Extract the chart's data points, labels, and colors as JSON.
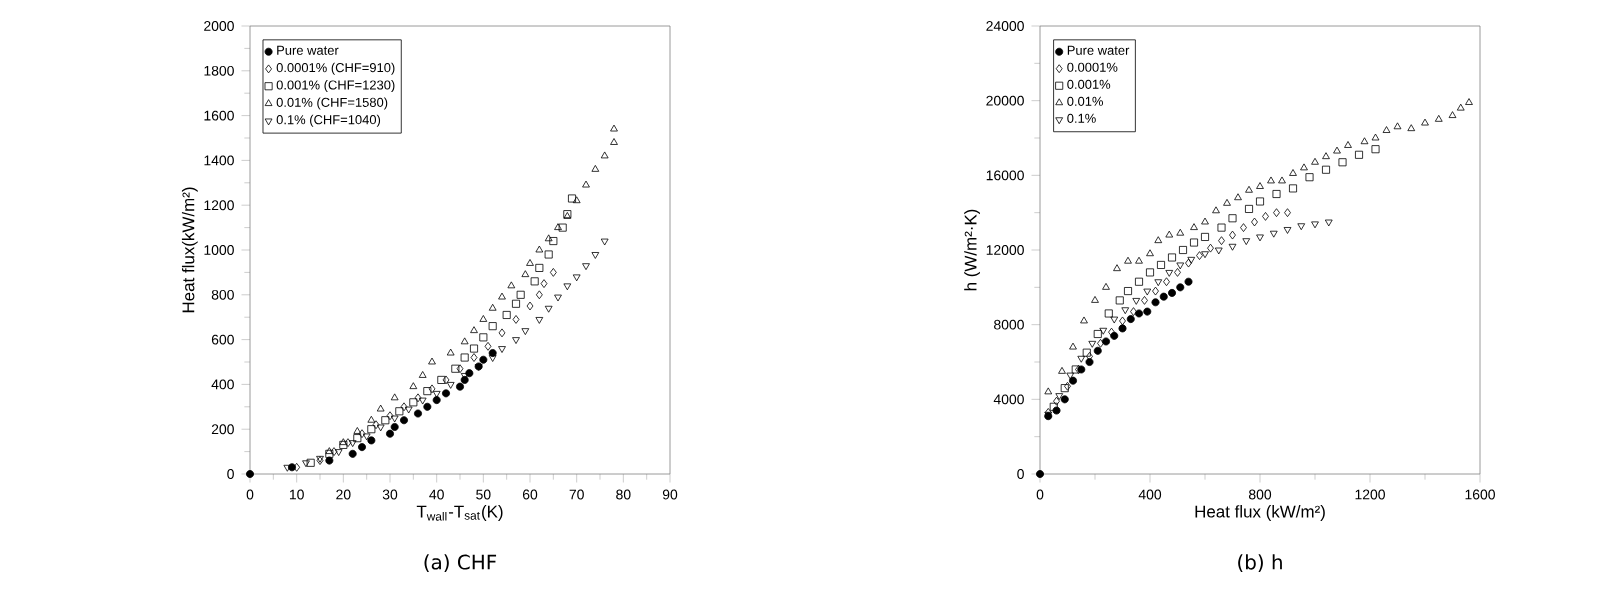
{
  "chart_data": [
    {
      "type": "scatter",
      "title": "(a) CHF",
      "xlabel": "T$_{wall}$-T$_{sat}$(K)",
      "ylabel": "Heat flux(kW/m²)",
      "xlim": [
        0,
        90
      ],
      "xticks": [
        0,
        10,
        20,
        30,
        40,
        50,
        60,
        70,
        80,
        90
      ],
      "ylim": [
        0,
        2000
      ],
      "yticks": [
        0,
        200,
        400,
        600,
        800,
        1000,
        1200,
        1400,
        1600,
        1800,
        2000
      ],
      "legend": "top left",
      "grid": false,
      "series": [
        {
          "name": "Pure water",
          "color": "#000000",
          "marker": "circle",
          "x": [
            0,
            9,
            17,
            22,
            24,
            26,
            30,
            31,
            33,
            36,
            38,
            40,
            42,
            45,
            46,
            47,
            49,
            50,
            52
          ],
          "values": [
            0,
            30,
            60,
            90,
            120,
            150,
            180,
            210,
            240,
            270,
            300,
            330,
            360,
            390,
            420,
            450,
            480,
            510,
            540
          ]
        },
        {
          "name": "0.0001% (CHF=910)",
          "color": "#000000",
          "marker": "diamond",
          "x": [
            10,
            15,
            18,
            21,
            24,
            27,
            30,
            33,
            36,
            39,
            42,
            45,
            48,
            51,
            54,
            57,
            60,
            62,
            63,
            65
          ],
          "values": [
            30,
            60,
            100,
            140,
            180,
            220,
            260,
            300,
            340,
            380,
            420,
            470,
            520,
            570,
            630,
            690,
            750,
            800,
            850,
            900
          ]
        },
        {
          "name": "0.001% (CHF=1230)",
          "color": "#000000",
          "marker": "square",
          "x": [
            13,
            17,
            20,
            23,
            26,
            29,
            32,
            35,
            38,
            41,
            44,
            46,
            48,
            50,
            52,
            55,
            57,
            58,
            61,
            62,
            64,
            65,
            67,
            68,
            69
          ],
          "values": [
            50,
            90,
            130,
            160,
            200,
            240,
            280,
            320,
            370,
            420,
            470,
            520,
            560,
            610,
            660,
            710,
            760,
            800,
            860,
            920,
            980,
            1040,
            1100,
            1160,
            1230
          ]
        },
        {
          "name": "0.01% (CHF=1580)",
          "color": "#000000",
          "marker": "triangle",
          "x": [
            17,
            20,
            23,
            26,
            28,
            31,
            35,
            37,
            39,
            43,
            46,
            48,
            50,
            52,
            54,
            56,
            59,
            60,
            62,
            64,
            66,
            68,
            70,
            72,
            74,
            76,
            78,
            78
          ],
          "values": [
            100,
            140,
            190,
            240,
            290,
            340,
            390,
            440,
            500,
            540,
            590,
            640,
            690,
            740,
            790,
            840,
            890,
            940,
            1000,
            1050,
            1100,
            1150,
            1220,
            1290,
            1360,
            1420,
            1480,
            1540
          ]
        },
        {
          "name": "0.1% (CHF=1040)",
          "color": "#000000",
          "marker": "triangle-down",
          "x": [
            8,
            12,
            15,
            19,
            22,
            25,
            28,
            31,
            34,
            37,
            40,
            43,
            46,
            49,
            52,
            54,
            57,
            59,
            62,
            64,
            66,
            68,
            70,
            72,
            74,
            76
          ],
          "values": [
            30,
            50,
            70,
            100,
            140,
            170,
            210,
            250,
            290,
            330,
            360,
            400,
            440,
            480,
            520,
            560,
            600,
            640,
            690,
            740,
            790,
            840,
            880,
            930,
            980,
            1040
          ]
        }
      ]
    },
    {
      "type": "scatter",
      "title": "(b) h",
      "xlabel": "Heat flux (kW/m²)",
      "ylabel": "h (W/m²·K)",
      "xlim": [
        0,
        1600
      ],
      "xticks": [
        0,
        400,
        800,
        1200,
        1600
      ],
      "ylim": [
        0,
        24000
      ],
      "yticks": [
        0,
        4000,
        8000,
        12000,
        16000,
        20000,
        24000
      ],
      "legend": "top left",
      "grid": false,
      "series": [
        {
          "name": "Pure water",
          "color": "#000000",
          "marker": "circle",
          "x": [
            0,
            30,
            60,
            90,
            120,
            150,
            180,
            210,
            240,
            270,
            300,
            330,
            360,
            390,
            420,
            450,
            480,
            510,
            540
          ],
          "values": [
            0,
            3100,
            3400,
            4000,
            5000,
            5600,
            6000,
            6600,
            7100,
            7400,
            7800,
            8300,
            8600,
            8700,
            9200,
            9500,
            9700,
            10000,
            10300
          ]
        },
        {
          "name": "0.0001%",
          "color": "#000000",
          "marker": "diamond",
          "x": [
            30,
            60,
            100,
            140,
            180,
            220,
            260,
            300,
            340,
            380,
            420,
            460,
            500,
            540,
            580,
            620,
            660,
            700,
            740,
            780,
            820,
            860,
            900
          ],
          "values": [
            3300,
            3900,
            4700,
            5600,
            6300,
            7000,
            7600,
            8200,
            8700,
            9300,
            9800,
            10300,
            10800,
            11300,
            11700,
            12100,
            12500,
            12800,
            13200,
            13500,
            13800,
            14000,
            14000
          ]
        },
        {
          "name": "0.001%",
          "color": "#000000",
          "marker": "square",
          "x": [
            50,
            90,
            130,
            170,
            210,
            250,
            290,
            320,
            360,
            400,
            440,
            480,
            520,
            560,
            600,
            660,
            700,
            760,
            800,
            860,
            920,
            980,
            1040,
            1100,
            1160,
            1220
          ],
          "values": [
            3600,
            4600,
            5600,
            6500,
            7500,
            8600,
            9300,
            9800,
            10300,
            10800,
            11200,
            11600,
            12000,
            12400,
            12700,
            13200,
            13700,
            14200,
            14600,
            15000,
            15300,
            15900,
            16300,
            16700,
            17100,
            17400
          ]
        },
        {
          "name": "0.01%",
          "color": "#000000",
          "marker": "triangle",
          "x": [
            30,
            80,
            120,
            160,
            200,
            240,
            280,
            320,
            360,
            400,
            430,
            470,
            510,
            560,
            600,
            640,
            680,
            720,
            760,
            800,
            840,
            880,
            920,
            960,
            1000,
            1040,
            1080,
            1120,
            1180,
            1220,
            1260,
            1300,
            1350,
            1400,
            1450,
            1500,
            1530,
            1560
          ],
          "values": [
            4400,
            5500,
            6800,
            8200,
            9300,
            10000,
            11000,
            11400,
            11400,
            11800,
            12500,
            12800,
            12900,
            13200,
            13500,
            14100,
            14500,
            14800,
            15200,
            15400,
            15700,
            15700,
            16100,
            16400,
            16700,
            17000,
            17300,
            17600,
            17800,
            18000,
            18400,
            18600,
            18500,
            18800,
            19000,
            19200,
            19600,
            19900
          ]
        },
        {
          "name": "0.1%",
          "color": "#000000",
          "marker": "triangle-down",
          "x": [
            30,
            70,
            110,
            150,
            190,
            230,
            270,
            310,
            350,
            390,
            430,
            470,
            510,
            550,
            600,
            650,
            700,
            750,
            800,
            850,
            900,
            950,
            1000,
            1050
          ],
          "values": [
            3200,
            4200,
            5300,
            6200,
            7000,
            7700,
            8300,
            8800,
            9300,
            9800,
            10300,
            10800,
            11200,
            11500,
            11800,
            12000,
            12200,
            12500,
            12700,
            12900,
            13100,
            13300,
            13400,
            13500
          ]
        }
      ]
    }
  ]
}
